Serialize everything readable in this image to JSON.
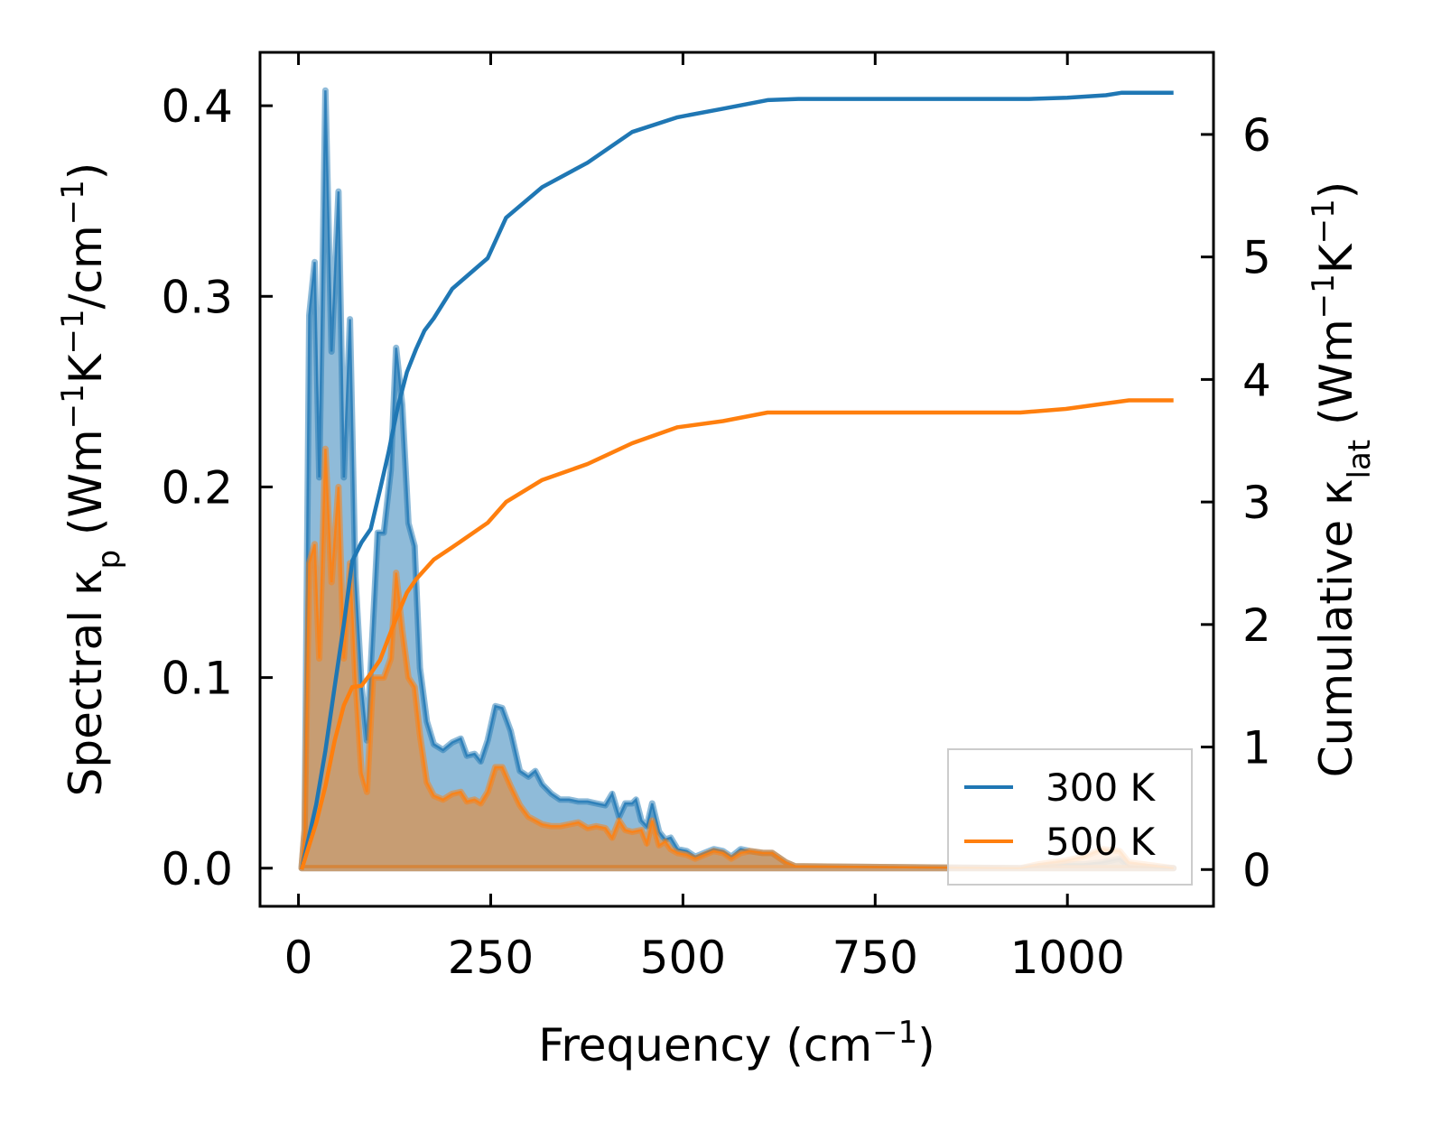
{
  "chart_data": {
    "type": "area+line",
    "xlabel": [
      {
        "t": "Frequency (cm"
      },
      {
        "t": "−1",
        "sup": true
      },
      {
        "t": ")"
      }
    ],
    "ylabel_left": [
      {
        "t": "Spectral κ"
      },
      {
        "t": "p",
        "sub": true
      },
      {
        "t": " (Wm"
      },
      {
        "t": "−1",
        "sup": true
      },
      {
        "t": "K"
      },
      {
        "t": "−1",
        "sup": true
      },
      {
        "t": "/cm"
      },
      {
        "t": "−1",
        "sup": true
      },
      {
        "t": ")"
      }
    ],
    "ylabel_right": [
      {
        "t": "Cumulative κ"
      },
      {
        "t": "lat",
        "sub": true
      },
      {
        "t": " (Wm"
      },
      {
        "t": "−1",
        "sup": true
      },
      {
        "t": "K"
      },
      {
        "t": "−1",
        "sup": true
      },
      {
        "t": ")"
      }
    ],
    "xlim": [
      -50,
      1190
    ],
    "ylim_left": [
      -0.02,
      0.428
    ],
    "ylim_right": [
      -0.3,
      6.67
    ],
    "xticks": [
      0,
      250,
      500,
      750,
      1000
    ],
    "xtick_labels": [
      "0",
      "250",
      "500",
      "750",
      "1000"
    ],
    "yticks_left": [
      0.0,
      0.1,
      0.2,
      0.3,
      0.4
    ],
    "ytick_labels_left": [
      "0.0",
      "0.1",
      "0.2",
      "0.3",
      "0.4"
    ],
    "yticks_right": [
      0,
      1,
      2,
      3,
      4,
      5,
      6
    ],
    "ytick_labels_right": [
      "0",
      "1",
      "2",
      "3",
      "4",
      "5",
      "6"
    ],
    "legend_position": "lower-right",
    "series": [
      {
        "name": "300 K",
        "color": "#1f77b4",
        "spectral_x": [
          4,
          8,
          14,
          21,
          27,
          35,
          43,
          52,
          59,
          67,
          74,
          82,
          89,
          97,
          103,
          111,
          120,
          127,
          135,
          143,
          151,
          158,
          167,
          176,
          188,
          200,
          211,
          219,
          229,
          237,
          246,
          256,
          265,
          276,
          288,
          299,
          308,
          317,
          329,
          340,
          352,
          364,
          376,
          387,
          399,
          408,
          417,
          425,
          434,
          439,
          446,
          453,
          460,
          469,
          477,
          484,
          493,
          505,
          516,
          528,
          540,
          552,
          563,
          575,
          587,
          604,
          616,
          634,
          646,
          939,
          962,
          998,
          1021,
          1045,
          1068,
          1080,
          1138
        ],
        "spectral_y": [
          0,
          0.02,
          0.29,
          0.318,
          0.205,
          0.408,
          0.271,
          0.355,
          0.205,
          0.288,
          0.153,
          0.096,
          0.067,
          0.129,
          0.176,
          0.176,
          0.209,
          0.273,
          0.243,
          0.181,
          0.169,
          0.105,
          0.077,
          0.065,
          0.062,
          0.066,
          0.068,
          0.059,
          0.06,
          0.056,
          0.067,
          0.085,
          0.084,
          0.072,
          0.051,
          0.048,
          0.051,
          0.044,
          0.039,
          0.036,
          0.036,
          0.035,
          0.035,
          0.034,
          0.033,
          0.039,
          0.027,
          0.034,
          0.034,
          0.036,
          0.025,
          0.022,
          0.034,
          0.019,
          0.015,
          0.016,
          0.01,
          0.009,
          0.006,
          0.008,
          0.01,
          0.009,
          0.006,
          0.01,
          0.009,
          0.008,
          0.008,
          0.003,
          0.001,
          0,
          0.001,
          0.002,
          0.002,
          0.003,
          0.005,
          0.001,
          0
        ],
        "cumulative_x": [
          4,
          23,
          35,
          47,
          59,
          70,
          82,
          94,
          106,
          117,
          129,
          141,
          153,
          164,
          176,
          200,
          246,
          270,
          317,
          376,
          434,
          493,
          552,
          610,
          650,
          950,
          1000,
          1050,
          1070,
          1138
        ],
        "cumulative_y": [
          0,
          0.53,
          0.97,
          1.49,
          2.0,
          2.52,
          2.67,
          2.78,
          3.1,
          3.4,
          3.77,
          4.06,
          4.25,
          4.4,
          4.5,
          4.74,
          4.99,
          5.32,
          5.57,
          5.77,
          6.02,
          6.14,
          6.21,
          6.28,
          6.29,
          6.29,
          6.3,
          6.32,
          6.34,
          6.34
        ]
      },
      {
        "name": "500 K",
        "color": "#ff7f0e",
        "spectral_x": [
          4,
          8,
          14,
          21,
          27,
          35,
          43,
          52,
          59,
          67,
          74,
          82,
          89,
          97,
          103,
          111,
          120,
          127,
          135,
          143,
          151,
          158,
          167,
          176,
          188,
          200,
          211,
          219,
          229,
          237,
          246,
          256,
          265,
          276,
          288,
          299,
          308,
          317,
          329,
          340,
          352,
          364,
          376,
          387,
          399,
          408,
          417,
          425,
          434,
          446,
          453,
          460,
          469,
          477,
          484,
          493,
          505,
          516,
          528,
          540,
          552,
          563,
          575,
          587,
          604,
          616,
          634,
          646,
          939,
          962,
          998,
          1021,
          1045,
          1068,
          1080,
          1138
        ],
        "spectral_y": [
          0,
          0.02,
          0.16,
          0.17,
          0.11,
          0.22,
          0.15,
          0.2,
          0.11,
          0.16,
          0.1,
          0.05,
          0.04,
          0.1,
          0.1,
          0.1,
          0.11,
          0.155,
          0.125,
          0.1,
          0.095,
          0.07,
          0.045,
          0.038,
          0.036,
          0.039,
          0.04,
          0.035,
          0.036,
          0.034,
          0.04,
          0.053,
          0.053,
          0.043,
          0.033,
          0.027,
          0.025,
          0.023,
          0.022,
          0.022,
          0.023,
          0.024,
          0.021,
          0.022,
          0.021,
          0.016,
          0.025,
          0.02,
          0.019,
          0.02,
          0.013,
          0.025,
          0.012,
          0.014,
          0.01,
          0.008,
          0.007,
          0.005,
          0.007,
          0.009,
          0.008,
          0.005,
          0.008,
          0.009,
          0.008,
          0.008,
          0.003,
          0.001,
          0,
          0.002,
          0.004,
          0.006,
          0.01,
          0.009,
          0.003,
          0
        ],
        "cumulative_x": [
          4,
          23,
          35,
          47,
          59,
          70,
          82,
          94,
          106,
          117,
          129,
          141,
          153,
          176,
          200,
          246,
          270,
          317,
          376,
          434,
          493,
          552,
          610,
          939,
          998,
          1045,
          1080,
          1138
        ],
        "cumulative_y": [
          0,
          0.38,
          0.68,
          1.05,
          1.34,
          1.49,
          1.5,
          1.6,
          1.71,
          1.89,
          2.08,
          2.26,
          2.37,
          2.53,
          2.63,
          2.83,
          3.0,
          3.18,
          3.31,
          3.48,
          3.61,
          3.66,
          3.73,
          3.73,
          3.76,
          3.8,
          3.83,
          3.83
        ]
      }
    ]
  }
}
